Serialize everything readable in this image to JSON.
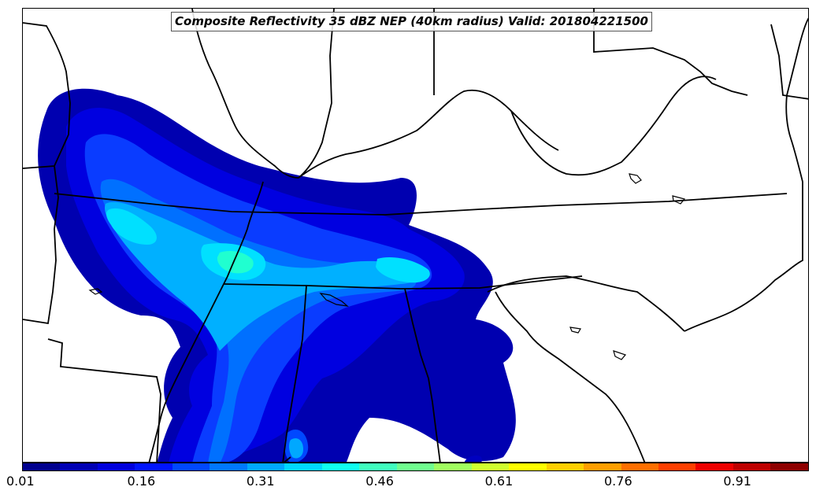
{
  "title": "Composite Reflectivity 35 dBZ NEP (40km radius) Valid: 201804221500",
  "colorbar": {
    "colors": [
      "#00008f",
      "#0000b5",
      "#0000dd",
      "#0014ff",
      "#0048ff",
      "#0078ff",
      "#00a8ff",
      "#00d8ff",
      "#10ffef",
      "#40ffbf",
      "#70ff8f",
      "#a0ff5f",
      "#d0ff2f",
      "#ffff00",
      "#ffcf00",
      "#ff9f00",
      "#ff6f00",
      "#ff3f00",
      "#ef0000",
      "#bf0000",
      "#8f0000"
    ],
    "tick_labels": [
      "0.01",
      "0.16",
      "0.31",
      "0.46",
      "0.61",
      "0.76",
      "0.91"
    ]
  }
}
